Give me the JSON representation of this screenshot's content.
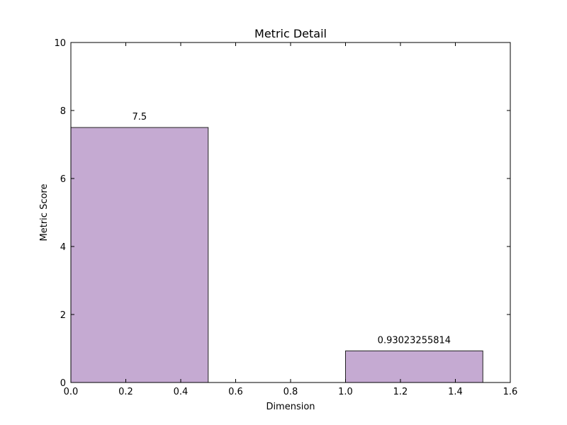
{
  "chart_data": {
    "type": "bar",
    "title": "Metric Detail",
    "xlabel": "Dimension",
    "ylabel": "Metric Score",
    "xlim": [
      0.0,
      1.6
    ],
    "ylim": [
      0,
      10
    ],
    "xticks": [
      "0.0",
      "0.2",
      "0.4",
      "0.6",
      "0.8",
      "1.0",
      "1.2",
      "1.4",
      "1.6"
    ],
    "yticks": [
      "0",
      "2",
      "4",
      "6",
      "8",
      "10"
    ],
    "bars": [
      {
        "x_start": 0.0,
        "x_end": 0.5,
        "value": 7.5,
        "label": "7.5"
      },
      {
        "x_start": 1.0,
        "x_end": 1.5,
        "value": 0.93023255814,
        "label": "0.93023255814"
      }
    ],
    "bar_color": "#c5aad2",
    "edge_color": "#222222",
    "grid": false
  }
}
